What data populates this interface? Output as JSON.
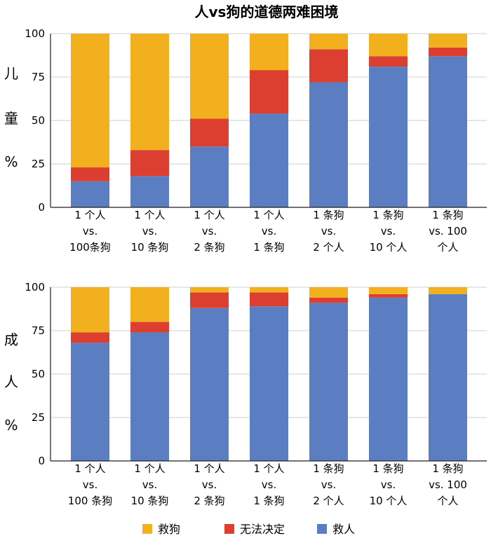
{
  "title": "人vs狗的道德两难困境",
  "legend": [
    {
      "label": "救狗",
      "color": "#f2b01e"
    },
    {
      "label": "无法决定",
      "color": "#dc3f2f"
    },
    {
      "label": "救人",
      "color": "#5a7ec1"
    }
  ],
  "chart_data": [
    {
      "type": "bar",
      "stacked": true,
      "ylabel": "儿童%",
      "ylabel_chars": [
        "儿",
        "童",
        "%"
      ],
      "ylim": [
        0,
        100
      ],
      "yticks": [
        "0",
        "25",
        "50",
        "75",
        "100"
      ],
      "categories": [
        [
          "1 个人",
          "vs.",
          "100条狗"
        ],
        [
          "1 个人",
          "vs.",
          "10 条狗"
        ],
        [
          "1 个人",
          "vs.",
          "2 条狗"
        ],
        [
          "1 个人",
          "vs.",
          "1 条狗"
        ],
        [
          "1 条狗",
          "vs.",
          "2 个人"
        ],
        [
          "1 条狗",
          "vs.",
          "10 个人"
        ],
        [
          "1 条狗",
          "vs. 100",
          "个人"
        ]
      ],
      "series": [
        {
          "name": "救人",
          "values": [
            15,
            18,
            35,
            54,
            72,
            81,
            87
          ]
        },
        {
          "name": "无法决定",
          "values": [
            8,
            15,
            16,
            25,
            19,
            6,
            5
          ]
        },
        {
          "name": "救狗",
          "values": [
            77,
            67,
            49,
            21,
            9,
            13,
            8
          ]
        }
      ]
    },
    {
      "type": "bar",
      "stacked": true,
      "ylabel": "成人%",
      "ylabel_chars": [
        "成",
        "人",
        "%"
      ],
      "ylim": [
        0,
        100
      ],
      "yticks": [
        "0",
        "25",
        "50",
        "75",
        "100"
      ],
      "categories": [
        [
          "1 个人",
          "vs.",
          "100 条狗"
        ],
        [
          "1 个人",
          "vs.",
          "10 条狗"
        ],
        [
          "1 个人",
          "vs.",
          "2 条狗"
        ],
        [
          "1 个人",
          "vs.",
          "1 条狗"
        ],
        [
          "1 条狗",
          "vs.",
          "2 个人"
        ],
        [
          "1 条狗",
          "vs.",
          "10 个人"
        ],
        [
          "1 条狗",
          "vs. 100",
          "个人"
        ]
      ],
      "series": [
        {
          "name": "救人",
          "values": [
            68,
            74,
            88,
            89,
            91,
            94,
            96
          ]
        },
        {
          "name": "无法决定",
          "values": [
            6,
            6,
            9,
            8,
            3,
            2,
            0
          ]
        },
        {
          "name": "救狗",
          "values": [
            26,
            20,
            3,
            3,
            6,
            4,
            4
          ]
        }
      ]
    }
  ]
}
